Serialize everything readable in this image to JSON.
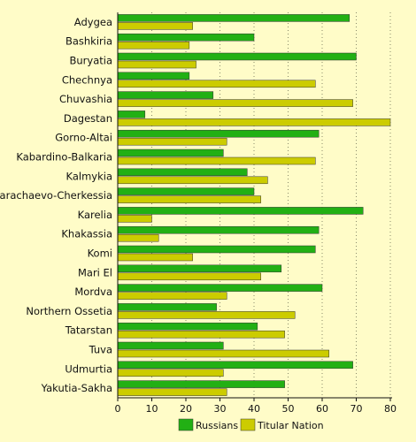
{
  "chart_data": {
    "type": "bar",
    "orientation": "horizontal",
    "categories": [
      "Adygea",
      "Bashkiria",
      "Buryatia",
      "Chechnya",
      "Chuvashia",
      "Dagestan",
      "Gorno-Altai",
      "Kabardino-Balkaria",
      "Kalmykia",
      "Karachaevo-Cherkessia",
      "Karelia",
      "Khakassia",
      "Komi",
      "Mari El",
      "Mordva",
      "Northern Ossetia",
      "Tatarstan",
      "Tuva",
      "Udmurtia",
      "Yakutia-Sakha"
    ],
    "series": [
      {
        "name": "Russians",
        "color": "#22b014",
        "values": [
          68,
          40,
          70,
          21,
          28,
          8,
          59,
          31,
          38,
          40,
          72,
          59,
          58,
          48,
          60,
          29,
          41,
          31,
          69,
          49
        ]
      },
      {
        "name": "Titular Nation",
        "color": "#cccc00",
        "values": [
          22,
          21,
          23,
          58,
          69,
          80,
          32,
          58,
          44,
          42,
          10,
          12,
          22,
          42,
          32,
          52,
          49,
          62,
          31,
          32
        ]
      }
    ],
    "xlim": [
      0,
      80
    ],
    "xticks": [
      0,
      10,
      20,
      30,
      40,
      50,
      60,
      70,
      80
    ],
    "grid": true,
    "legend_position": "bottom"
  }
}
